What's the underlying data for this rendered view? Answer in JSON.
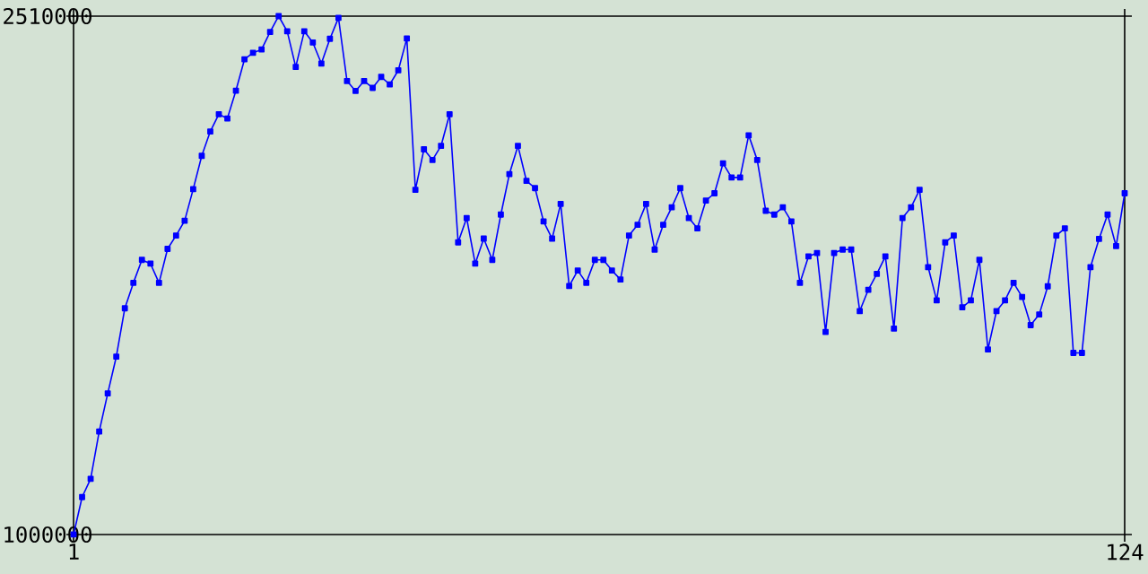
{
  "chart_data": {
    "type": "line",
    "x": [
      1,
      2,
      3,
      4,
      5,
      6,
      7,
      8,
      9,
      10,
      11,
      12,
      13,
      14,
      15,
      16,
      17,
      18,
      19,
      20,
      21,
      22,
      23,
      24,
      25,
      26,
      27,
      28,
      29,
      30,
      31,
      32,
      33,
      34,
      35,
      36,
      37,
      38,
      39,
      40,
      41,
      42,
      43,
      44,
      45,
      46,
      47,
      48,
      49,
      50,
      51,
      52,
      53,
      54,
      55,
      56,
      57,
      58,
      59,
      60,
      61,
      62,
      63,
      64,
      65,
      66,
      67,
      68,
      69,
      70,
      71,
      72,
      73,
      74,
      75,
      76,
      77,
      78,
      79,
      80,
      81,
      82,
      83,
      84,
      85,
      86,
      87,
      88,
      89,
      90,
      91,
      92,
      93,
      94,
      95,
      96,
      97,
      98,
      99,
      100,
      101,
      102,
      103,
      104,
      105,
      106,
      107,
      108,
      109,
      110,
      111,
      112,
      113,
      114,
      115,
      116,
      117,
      118,
      119,
      120,
      121,
      122,
      123,
      124
    ],
    "series": [
      {
        "color": "#0000ff",
        "values": [
          1000000,
          1109000,
          1162000,
          1300000,
          1411000,
          1518000,
          1659000,
          1733000,
          1800000,
          1789000,
          1733000,
          1832000,
          1871000,
          1914000,
          2006000,
          2103000,
          2174000,
          2224000,
          2212000,
          2293000,
          2384000,
          2403000,
          2413000,
          2464000,
          2510000,
          2466000,
          2362000,
          2466000,
          2433000,
          2372000,
          2444000,
          2505000,
          2321000,
          2292000,
          2321000,
          2301000,
          2333000,
          2311000,
          2352000,
          2445000,
          2004000,
          2122000,
          2091000,
          2132000,
          2224000,
          1851000,
          1922000,
          1789000,
          1862000,
          1800000,
          1932000,
          2050000,
          2132000,
          2030000,
          2009000,
          1912000,
          1862000,
          1963000,
          1724000,
          1769000,
          1733000,
          1800000,
          1800000,
          1769000,
          1743000,
          1871000,
          1902000,
          1963000,
          1830000,
          1902000,
          1953000,
          2009000,
          1922000,
          1892000,
          1973000,
          1994000,
          2081000,
          2040000,
          2040000,
          2163000,
          2091000,
          1943000,
          1932000,
          1953000,
          1912000,
          1733000,
          1810000,
          1820000,
          1590000,
          1820000,
          1830000,
          1830000,
          1651000,
          1713000,
          1759000,
          1810000,
          1600000,
          1922000,
          1953000,
          2004000,
          1779000,
          1682000,
          1851000,
          1871000,
          1662000,
          1682000,
          1800000,
          1539000,
          1651000,
          1682000,
          1733000,
          1692000,
          1610000,
          1641000,
          1723000,
          1871000,
          1892000,
          1529000,
          1529000,
          1779000,
          1861000,
          1932000,
          1840000,
          1994000
        ]
      }
    ],
    "xlim": [
      1,
      124
    ],
    "xticks": [
      1,
      124
    ],
    "ylim": [
      1000000,
      2510000
    ],
    "yticks": [
      1000000,
      2510000
    ],
    "marker": "square"
  }
}
